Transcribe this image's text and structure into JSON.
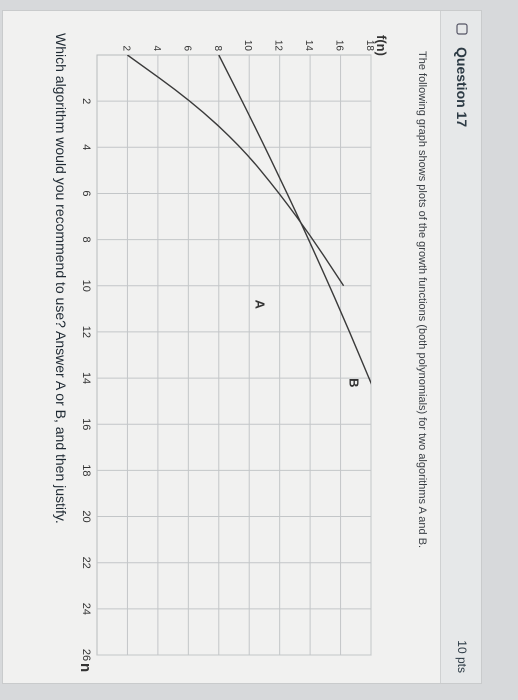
{
  "question": {
    "title": "Question 17",
    "points": "10 pts",
    "intro": "The following graph shows plots of the growth functions (both polynomials) for two algorithms A and B.",
    "prompt": "Which algorithm would you recommend to use? Answer A or B, and then justify."
  },
  "chart_data": {
    "type": "line",
    "ylabel": "f(n)",
    "xlabel": "n",
    "x_ticks": [
      2,
      4,
      6,
      8,
      10,
      12,
      14,
      16,
      18,
      20,
      22,
      24,
      26
    ],
    "y_ticks": [
      2,
      4,
      6,
      8,
      10,
      12,
      14,
      16,
      18
    ],
    "xlim": [
      0,
      26
    ],
    "ylim": [
      0,
      18
    ],
    "grid": true,
    "series": [
      {
        "name": "A",
        "x": [
          0,
          2,
          4,
          6,
          8,
          10
        ],
        "y": [
          2.0,
          6.2,
          9.5,
          12.0,
          14.2,
          16.2
        ]
      },
      {
        "name": "B",
        "x": [
          0,
          3,
          6,
          9,
          12,
          15,
          16
        ],
        "y": [
          8.0,
          10.3,
          12.5,
          14.6,
          16.6,
          18.5,
          19.2
        ]
      }
    ],
    "series_color": "#3a3a3a"
  }
}
